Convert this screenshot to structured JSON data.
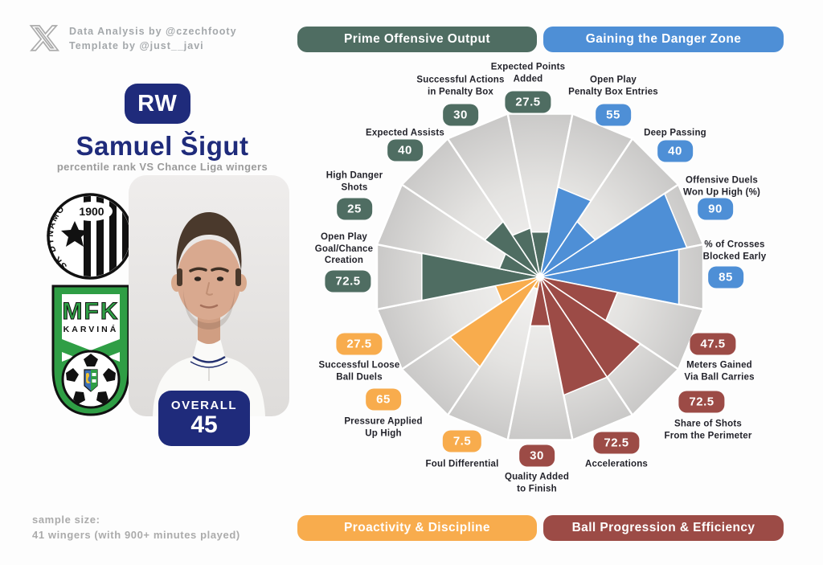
{
  "credits": {
    "line1": "Data Analysis by @czechfooty",
    "line2": "Template by @just__javi"
  },
  "player": {
    "position": "RW",
    "name": "Samuel Šigut",
    "subtitle": "percentile rank VS Chance Liga wingers",
    "overall_label": "OVERALL",
    "overall_value": "45"
  },
  "clubs": {
    "club1": {
      "founded": "1900",
      "arc_text": "SK DYNAMO"
    },
    "club2": {
      "initials": "MFK",
      "name": "KARVINÁ"
    }
  },
  "sample": {
    "line1": "sample size:",
    "line2": "41 wingers (with 900+ minutes played)"
  },
  "theme": {
    "navy": "#1F2B7B",
    "muted_text": "#ABABAB",
    "label_text": "#23232B",
    "slice_track_outer": "#C9C8C7",
    "slice_track_inner": "#F5F4F3"
  },
  "chart_data": {
    "type": "pie",
    "variant": "pizza-percentile",
    "scale": [
      0,
      100
    ],
    "groups": [
      {
        "key": "prime",
        "label": "Prime Offensive Output",
        "color": "#4F6D62",
        "position": "top-left"
      },
      {
        "key": "danger",
        "label": "Gaining the Danger Zone",
        "color": "#4E8FD6",
        "position": "top-right"
      },
      {
        "key": "proactivity",
        "label": "Proactivity & Discipline",
        "color": "#F8AC4D",
        "position": "bottom-left"
      },
      {
        "key": "progression",
        "label": "Ball Progression & Efficiency",
        "color": "#9C4B46",
        "position": "bottom-right"
      }
    ],
    "params": [
      {
        "label": "Expected Points\nAdded",
        "value": 27.5,
        "group": "prime"
      },
      {
        "label": "Open Play\nPenalty Box Entries",
        "value": 55,
        "group": "danger"
      },
      {
        "label": "Deep Passing",
        "value": 40,
        "group": "danger"
      },
      {
        "label": "Offensive Duels\nWon Up High (%)",
        "value": 90,
        "group": "danger"
      },
      {
        "label": "% of Crosses\nBlocked Early",
        "value": 85,
        "group": "danger"
      },
      {
        "label": "Meters Gained\nVia Ball Carries",
        "value": 47.5,
        "group": "progression"
      },
      {
        "label": "Share of Shots\nFrom the Perimeter",
        "value": 72.5,
        "group": "progression"
      },
      {
        "label": "Accelerations",
        "value": 72.5,
        "group": "progression"
      },
      {
        "label": "Quality Added\nto Finish",
        "value": 30,
        "group": "progression"
      },
      {
        "label": "Foul Differential",
        "value": 7.5,
        "group": "proactivity"
      },
      {
        "label": "Pressure Applied\nUp High",
        "value": 65,
        "group": "proactivity"
      },
      {
        "label": "Successful Loose\nBall Duels",
        "value": 27.5,
        "group": "proactivity"
      },
      {
        "label": "Open Play\nGoal/Chance\nCreation",
        "value": 72.5,
        "group": "prime"
      },
      {
        "label": "High Danger\nShots",
        "value": 25,
        "group": "prime"
      },
      {
        "label": "Expected Assists",
        "value": 40,
        "group": "prime"
      },
      {
        "label": "Successful Actions\nin Penalty Box",
        "value": 30,
        "group": "prime"
      }
    ]
  }
}
